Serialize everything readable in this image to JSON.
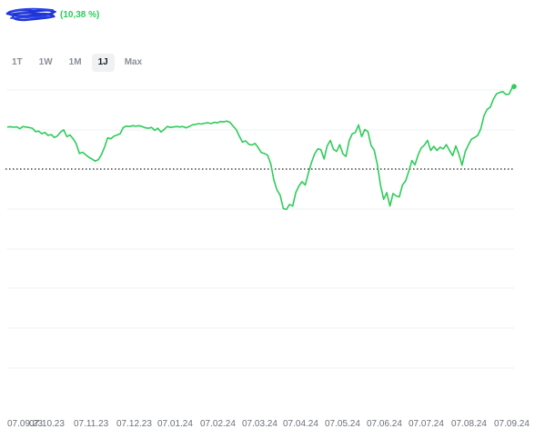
{
  "header": {
    "change_text": "(10,38 %)",
    "accent_color": "#2ecc5a"
  },
  "tabs": [
    {
      "label": "1T",
      "active": false
    },
    {
      "label": "1W",
      "active": false
    },
    {
      "label": "1M",
      "active": false
    },
    {
      "label": "1J",
      "active": true
    },
    {
      "label": "Max",
      "active": false
    }
  ],
  "chart_data": {
    "type": "line",
    "grid": true,
    "reference_line": "dotted",
    "line_color": "#2ecc5a",
    "x_ticks": [
      "07.09.23",
      "07.10.23",
      "07.11.23",
      "07.12.23",
      "07.01.24",
      "07.02.24",
      "07.03.24",
      "07.04.24",
      "07.05.24",
      "07.06.24",
      "07.07.24",
      "07.08.24",
      "07.09.24"
    ],
    "series": [
      {
        "values": [
          50.0,
          50.3,
          49.7,
          50.1,
          48.0,
          50.5,
          49.9,
          49.4,
          48.5,
          44.5,
          45.0,
          42.0,
          43.5,
          40.0,
          41.0,
          37.5,
          39.5,
          44.0,
          46.5,
          38.5,
          40.5,
          36.0,
          30.0,
          18.5,
          20.0,
          17.0,
          14.0,
          12.0,
          9.5,
          11.0,
          17.0,
          26.0,
          37.0,
          36.0,
          39.0,
          40.5,
          42.0,
          49.5,
          51.0,
          50.5,
          51.5,
          51.0,
          51.5,
          50.5,
          49.0,
          48.5,
          49.5,
          46.0,
          48.5,
          44.0,
          47.0,
          50.5,
          49.5,
          50.0,
          50.5,
          50.0,
          50.5,
          49.0,
          50.5,
          52.5,
          53.0,
          54.0,
          53.5,
          54.5,
          55.0,
          54.0,
          55.5,
          55.0,
          56.5,
          56.0,
          57.0,
          55.5,
          51.0,
          47.0,
          39.0,
          32.0,
          33.5,
          29.5,
          28.5,
          30.5,
          25.5,
          19.5,
          18.5,
          16.5,
          6.0,
          -13.0,
          -25.0,
          -31.0,
          -47.0,
          -48.0,
          -42.0,
          -44.0,
          -28.0,
          -20.0,
          -15.0,
          -19.0,
          -5.0,
          8.0,
          18.0,
          24.0,
          23.0,
          12.0,
          27.5,
          34.0,
          23.5,
          21.0,
          29.0,
          18.0,
          15.0,
          33.5,
          42.0,
          43.5,
          52.5,
          38.5,
          47.0,
          44.5,
          28.0,
          22.5,
          5.0,
          -19.0,
          -36.0,
          -28.0,
          -44.0,
          -29.0,
          -32.0,
          -33.0,
          -19.0,
          -14.0,
          -3.0,
          10.0,
          5.0,
          17.0,
          25.0,
          28.5,
          34.0,
          22.0,
          27.0,
          22.0,
          26.0,
          24.0,
          29.0,
          22.0,
          16.0,
          27.5,
          17.5,
          4.5,
          20.5,
          28.5,
          35.5,
          37.5,
          40.0,
          48.0,
          63.5,
          71.0,
          73.5,
          83.0,
          89.5,
          91.0,
          92.0,
          88.5,
          89.0,
          97.0
        ]
      }
    ]
  }
}
